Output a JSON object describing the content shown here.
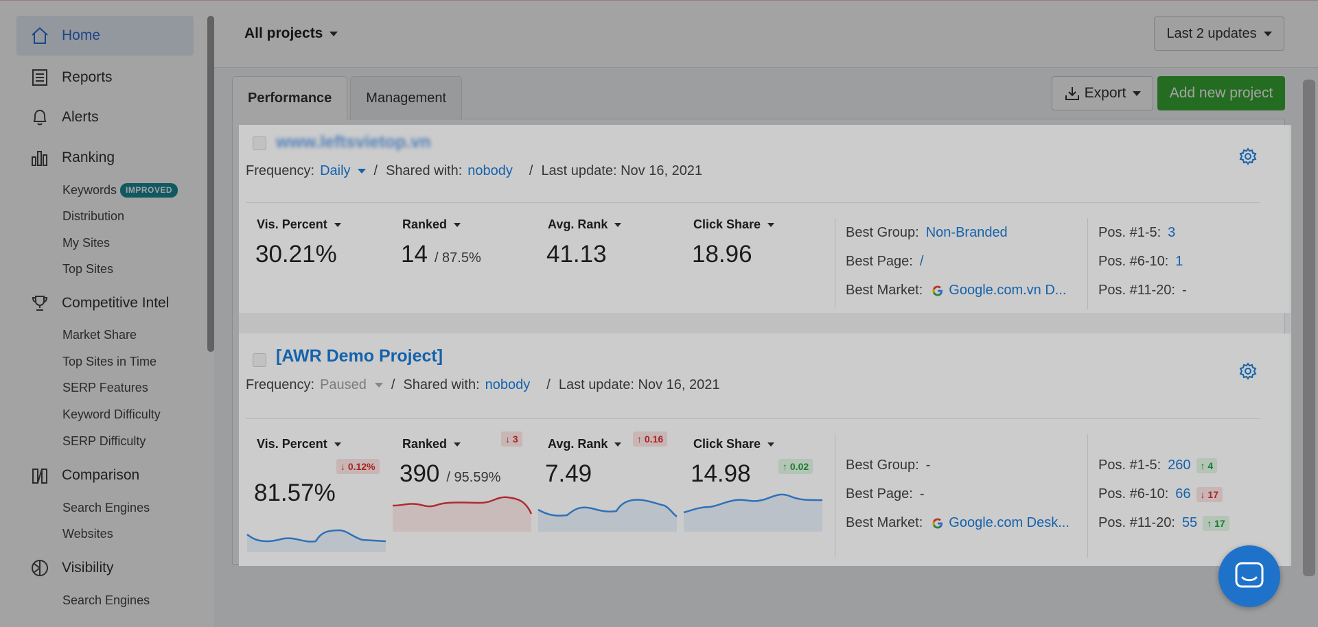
{
  "sidebar": {
    "main_items": [
      {
        "label": "Home",
        "icon": "home-icon",
        "active": true
      },
      {
        "label": "Reports",
        "icon": "reports-icon"
      },
      {
        "label": "Alerts",
        "icon": "bell-icon"
      },
      {
        "label": "Ranking",
        "icon": "bar-chart-icon"
      },
      {
        "label": "Competitive Intel",
        "icon": "trophy-icon"
      },
      {
        "label": "Comparison",
        "icon": "comparison-icon"
      },
      {
        "label": "Visibility",
        "icon": "visibility-icon"
      }
    ],
    "ranking_sub": [
      "Keywords",
      "Distribution",
      "My Sites",
      "Top Sites"
    ],
    "keywords_badge": "IMPROVED",
    "competitive_sub": [
      "Market Share",
      "Top Sites in Time",
      "SERP Features",
      "Keyword Difficulty",
      "SERP Difficulty"
    ],
    "comparison_sub": [
      "Search Engines",
      "Websites"
    ],
    "visibility_sub": [
      "Search Engines"
    ]
  },
  "topbar": {
    "project_select": "All projects",
    "updates_select": "Last 2 updates"
  },
  "tabs": [
    "Performance",
    "Management"
  ],
  "actions": {
    "export": "Export",
    "add_project": "Add new project"
  },
  "colors": {
    "accent": "#1a7bd8",
    "add_button": "#3aaa35",
    "badge": "#1a8a9a",
    "down": "#d42b2b",
    "up": "#1f9a3a"
  },
  "projects": [
    {
      "title": "www.leftsvietop.vn",
      "frequency_label": "Frequency:",
      "frequency": "Daily",
      "shared_label": "Shared with:",
      "shared": "nobody",
      "last_update": "Last update: Nov 16, 2021",
      "metrics": [
        {
          "label": "Vis. Percent",
          "value": "30.21%"
        },
        {
          "label": "Ranked",
          "value": "14",
          "sub": "/ 87.5%"
        },
        {
          "label": "Avg. Rank",
          "value": "41.13"
        },
        {
          "label": "Click Share",
          "value": "18.96"
        }
      ],
      "best_group_label": "Best Group:",
      "best_group": "Non-Branded",
      "best_page_label": "Best Page:",
      "best_page": "/",
      "best_market_label": "Best Market:",
      "best_market": "Google.com.vn D...",
      "pos": [
        {
          "label": "Pos. #1-5:",
          "value": "3"
        },
        {
          "label": "Pos. #6-10:",
          "value": "1"
        },
        {
          "label": "Pos. #11-20:",
          "value": "-"
        }
      ]
    },
    {
      "title": "[AWR Demo Project]",
      "frequency_label": "Frequency:",
      "frequency": "Paused",
      "shared_label": "Shared with:",
      "shared": "nobody",
      "last_update": "Last update: Nov 16, 2021",
      "metrics": [
        {
          "label": "Vis. Percent",
          "value": "81.57%",
          "delta": "↓ 0.12%",
          "trend": "down"
        },
        {
          "label": "Ranked",
          "value": "390",
          "sub": "/ 95.59%",
          "delta": "↓ 3",
          "trend": "down"
        },
        {
          "label": "Avg. Rank",
          "value": "7.49",
          "delta": "↑ 0.16",
          "trend": "down"
        },
        {
          "label": "Click Share",
          "value": "14.98",
          "delta": "↑ 0.02",
          "trend": "up"
        }
      ],
      "best_group_label": "Best Group:",
      "best_group": "-",
      "best_page_label": "Best Page:",
      "best_page": "-",
      "best_market_label": "Best Market:",
      "best_market": "Google.com Desk...",
      "pos": [
        {
          "label": "Pos. #1-5:",
          "value": "260",
          "delta": "↑ 4",
          "trend": "up"
        },
        {
          "label": "Pos. #6-10:",
          "value": "66",
          "delta": "↓ 17",
          "trend": "down"
        },
        {
          "label": "Pos. #11-20:",
          "value": "55",
          "delta": "↑ 17",
          "trend": "up"
        }
      ]
    }
  ]
}
